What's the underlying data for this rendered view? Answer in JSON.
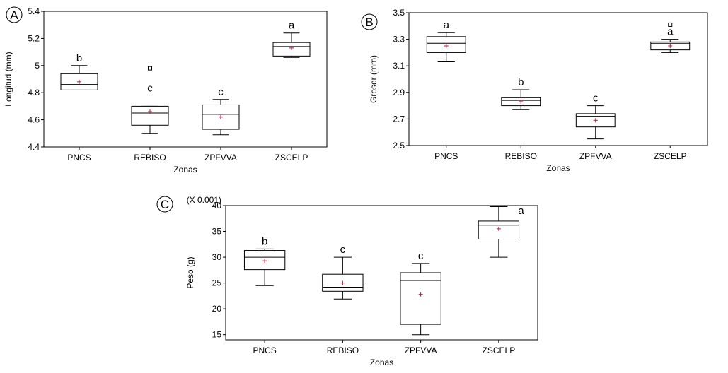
{
  "chart_data": [
    {
      "type": "box",
      "panel_label": "A",
      "xlabel": "Zonas",
      "ylabel": "Longitud (mm)",
      "categories": [
        "PNCS",
        "REBISO",
        "ZPFVVA",
        "ZSCELP"
      ],
      "ylim": [
        4.4,
        5.4
      ],
      "yticks": [
        "4.4",
        "4.6",
        "4.8",
        "5",
        "5.2",
        "5.4"
      ],
      "boxes": [
        {
          "min": 4.82,
          "q1": 4.82,
          "median": 4.86,
          "q3": 4.94,
          "max": 5.0,
          "mean": 4.88,
          "letter": "b",
          "outliers": []
        },
        {
          "min": 4.5,
          "q1": 4.56,
          "median": 4.65,
          "q3": 4.7,
          "max": 4.7,
          "mean": 4.66,
          "letter": "c",
          "outliers": [
            4.98
          ]
        },
        {
          "min": 4.49,
          "q1": 4.53,
          "median": 4.64,
          "q3": 4.71,
          "max": 4.75,
          "mean": 4.62,
          "letter": "c",
          "outliers": []
        },
        {
          "min": 5.06,
          "q1": 5.07,
          "median": 5.14,
          "q3": 5.17,
          "max": 5.24,
          "mean": 5.13,
          "letter": "a",
          "outliers": []
        }
      ]
    },
    {
      "type": "box",
      "panel_label": "B",
      "xlabel": "Zonas",
      "ylabel": "Grosor (mm)",
      "categories": [
        "PNCS",
        "REBISO",
        "ZPFVVA",
        "ZSCELP"
      ],
      "ylim": [
        2.5,
        3.5
      ],
      "yticks": [
        "2.5",
        "2.7",
        "2.9",
        "3.1",
        "3.3",
        "3.5"
      ],
      "boxes": [
        {
          "min": 3.13,
          "q1": 3.2,
          "median": 3.27,
          "q3": 3.32,
          "max": 3.35,
          "mean": 3.25,
          "letter": "a",
          "outliers": []
        },
        {
          "min": 2.77,
          "q1": 2.8,
          "median": 2.84,
          "q3": 2.86,
          "max": 2.92,
          "mean": 2.83,
          "letter": "b",
          "outliers": []
        },
        {
          "min": 2.55,
          "q1": 2.64,
          "median": 2.72,
          "q3": 2.74,
          "max": 2.8,
          "mean": 2.69,
          "letter": "c",
          "outliers": []
        },
        {
          "min": 3.2,
          "q1": 3.22,
          "median": 3.27,
          "q3": 3.28,
          "max": 3.3,
          "mean": 3.25,
          "letter": "a",
          "outliers": [
            3.41
          ]
        }
      ]
    },
    {
      "type": "box",
      "panel_label": "C",
      "xlabel": "Zonas",
      "ylabel": "Peso (g)",
      "scale_note": "(X 0.001)",
      "categories": [
        "PNCS",
        "REBISO",
        "ZPFVVA",
        "ZSCELP"
      ],
      "ylim": [
        14,
        40
      ],
      "yticks": [
        "15",
        "20",
        "25",
        "30",
        "35",
        "40"
      ],
      "boxes": [
        {
          "min": 24.5,
          "q1": 27.6,
          "median": 30.0,
          "q3": 31.3,
          "max": 31.6,
          "mean": 29.3,
          "letter": "b",
          "outliers": []
        },
        {
          "min": 21.9,
          "q1": 23.4,
          "median": 24.2,
          "q3": 26.7,
          "max": 30.0,
          "mean": 25.0,
          "letter": "c",
          "outliers": []
        },
        {
          "min": 15.0,
          "q1": 17.0,
          "median": 25.5,
          "q3": 27.0,
          "max": 28.8,
          "mean": 22.8,
          "letter": "c",
          "outliers": []
        },
        {
          "min": 30.0,
          "q1": 33.5,
          "median": 36.2,
          "q3": 37.0,
          "max": 39.8,
          "mean": 35.5,
          "letter": "a",
          "outliers": []
        }
      ]
    }
  ]
}
